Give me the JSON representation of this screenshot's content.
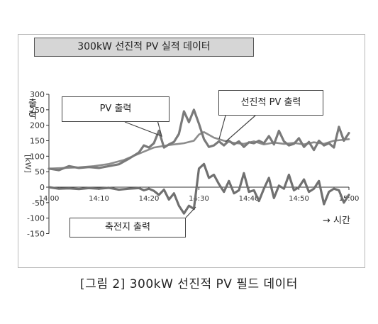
{
  "header": {
    "title": "300kW 선진적 PV 실적 데이터"
  },
  "caption": "[그림 2] 300kW 선진적 PV 필드 데이터",
  "chart_data": {
    "type": "line",
    "ylabel_top": "출력",
    "ylabel_unit": "[kW]",
    "ylim": [
      -150,
      300
    ],
    "yticks": [
      "300",
      "250",
      "200",
      "150",
      "100",
      "50",
      "0",
      "-50",
      "-100",
      "-150"
    ],
    "ytick_values": [
      300,
      250,
      200,
      150,
      100,
      50,
      0,
      -50,
      -100,
      -150
    ],
    "xlim": [
      0,
      60
    ],
    "xticks": [
      "14:00",
      "14:10",
      "14:20",
      "14:30",
      "14:40",
      "14:50",
      "15:00"
    ],
    "xtick_values": [
      0,
      10,
      20,
      30,
      40,
      50,
      60
    ],
    "grid": false,
    "annotations": {
      "pv": "PV 출력",
      "selected_pv": "선진적 PV 출력",
      "battery": "축전지 출력",
      "time_arrow": "→ 시간"
    },
    "series": [
      {
        "name": "PV 출력",
        "color": "#7a7a7a",
        "x": [
          0,
          2,
          4,
          6,
          8,
          10,
          12,
          14,
          16,
          18,
          19,
          20,
          21,
          22,
          23,
          24,
          25,
          26,
          27,
          28,
          29,
          30,
          31,
          32,
          33,
          34,
          35,
          36,
          37,
          38,
          39,
          40,
          41,
          42,
          43,
          44,
          45,
          46,
          47,
          48,
          49,
          50,
          51,
          52,
          53,
          54,
          55,
          56,
          57,
          58,
          59,
          60
        ],
        "y": [
          60,
          55,
          68,
          62,
          65,
          62,
          68,
          74,
          92,
          112,
          135,
          128,
          142,
          182,
          128,
          138,
          146,
          172,
          245,
          210,
          250,
          205,
          155,
          130,
          135,
          148,
          135,
          150,
          138,
          148,
          130,
          145,
          142,
          150,
          142,
          165,
          138,
          182,
          148,
          135,
          140,
          158,
          130,
          146,
          120,
          150,
          135,
          142,
          128,
          195,
          150,
          175
        ]
      },
      {
        "name": "선진적 PV 출력",
        "color": "#8c8c8c",
        "x": [
          0,
          3,
          6,
          9,
          12,
          15,
          18,
          21,
          24,
          27,
          29,
          30,
          31,
          33,
          35,
          37,
          39,
          41,
          43,
          45,
          47,
          49,
          51,
          53,
          55,
          57,
          60
        ],
        "y": [
          60,
          62,
          64,
          68,
          75,
          88,
          108,
          128,
          136,
          142,
          150,
          170,
          178,
          160,
          150,
          143,
          140,
          148,
          138,
          144,
          140,
          143,
          138,
          145,
          140,
          150,
          155
        ]
      },
      {
        "name": "축전지 출력",
        "color": "#707070",
        "x": [
          0,
          2,
          4,
          6,
          8,
          10,
          12,
          14,
          16,
          18,
          19,
          20,
          21,
          22,
          23,
          24,
          25,
          26,
          27,
          28,
          29,
          30,
          31,
          32,
          33,
          34,
          35,
          36,
          37,
          38,
          39,
          40,
          41,
          42,
          43,
          44,
          45,
          46,
          47,
          48,
          49,
          50,
          51,
          52,
          53,
          54,
          55,
          56,
          57,
          58,
          59,
          60
        ],
        "y": [
          0,
          -5,
          -4,
          -6,
          -3,
          -5,
          -2,
          -8,
          -5,
          -3,
          -10,
          -5,
          -12,
          -25,
          -8,
          -40,
          -20,
          -60,
          -85,
          -60,
          -70,
          60,
          75,
          30,
          40,
          10,
          -15,
          20,
          -20,
          -10,
          45,
          -15,
          -10,
          -45,
          -5,
          30,
          -35,
          5,
          -5,
          40,
          -10,
          0,
          25,
          -15,
          -5,
          20,
          -55,
          -15,
          -5,
          -10,
          -50,
          -25
        ]
      }
    ]
  }
}
